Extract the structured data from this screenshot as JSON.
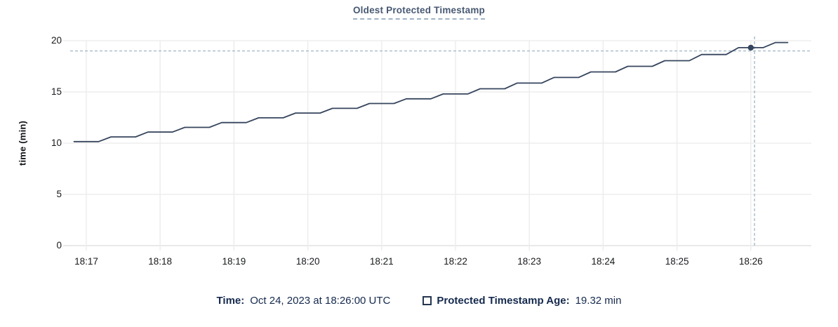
{
  "colors": {
    "series": "#36455e",
    "title": "#475872",
    "legend_text": "#152a4e",
    "crosshair": "#a6bbc9",
    "grid": "#ededed",
    "axis_line": "#e2e2e2",
    "tick_text": "#17191c"
  },
  "chart": {
    "title": "Oldest Protected Timestamp",
    "ylabel": "time (min)"
  },
  "legend": {
    "time_label": "Time:",
    "time_value": "Oct 24, 2023 at 18:26:00 UTC",
    "series_label": "Protected Timestamp Age:",
    "series_value": "19.32 min"
  },
  "chart_data": {
    "type": "line",
    "title": "Oldest Protected Timestamp",
    "xlabel": "",
    "ylabel": "time (min)",
    "ylim": [
      0,
      20
    ],
    "yticks": [
      0,
      5,
      10,
      15,
      20
    ],
    "xticks": [
      "18:17",
      "18:18",
      "18:19",
      "18:20",
      "18:21",
      "18:22",
      "18:23",
      "18:24",
      "18:25",
      "18:26"
    ],
    "grid": true,
    "legend_position": "bottom",
    "series": [
      {
        "name": "Protected Timestamp Age",
        "unit": "min",
        "times": [
          "18:16:50",
          "18:17:00",
          "18:17:10",
          "18:17:20",
          "18:17:30",
          "18:17:40",
          "18:17:50",
          "18:18:00",
          "18:18:10",
          "18:18:20",
          "18:18:30",
          "18:18:40",
          "18:18:50",
          "18:19:00",
          "18:19:10",
          "18:19:20",
          "18:19:30",
          "18:19:40",
          "18:19:50",
          "18:20:00",
          "18:20:10",
          "18:20:20",
          "18:20:30",
          "18:20:40",
          "18:20:50",
          "18:21:00",
          "18:21:10",
          "18:21:20",
          "18:21:30",
          "18:21:40",
          "18:21:50",
          "18:22:00",
          "18:22:10",
          "18:22:20",
          "18:22:30",
          "18:22:40",
          "18:22:50",
          "18:23:00",
          "18:23:10",
          "18:23:20",
          "18:23:30",
          "18:23:40",
          "18:23:50",
          "18:24:00",
          "18:24:10",
          "18:24:20",
          "18:24:30",
          "18:24:40",
          "18:24:50",
          "18:25:00",
          "18:25:10",
          "18:25:20",
          "18:25:30",
          "18:25:40",
          "18:25:50",
          "18:26:00",
          "18:26:10",
          "18:26:20",
          "18:26:30"
        ],
        "values": [
          10.15,
          10.15,
          10.15,
          10.61,
          10.61,
          10.61,
          11.08,
          11.08,
          11.08,
          11.54,
          11.54,
          11.54,
          12.01,
          12.01,
          12.01,
          12.47,
          12.47,
          12.47,
          12.94,
          12.94,
          12.94,
          13.4,
          13.4,
          13.4,
          13.87,
          13.87,
          13.87,
          14.33,
          14.33,
          14.33,
          14.8,
          14.8,
          14.8,
          15.31,
          15.31,
          15.31,
          15.86,
          15.86,
          15.86,
          16.41,
          16.41,
          16.41,
          16.95,
          16.95,
          16.95,
          17.5,
          17.5,
          17.5,
          18.05,
          18.05,
          18.05,
          18.65,
          18.65,
          18.65,
          19.32,
          19.32,
          19.32,
          19.82,
          19.82
        ]
      }
    ],
    "hover_point": {
      "time": "18:26:00",
      "value": 19.32,
      "time_label": "Oct 24, 2023 at 18:26:00 UTC",
      "value_label": "19.32 min"
    },
    "crosshair": {
      "time": "18:26:03",
      "value": 19.0
    }
  }
}
